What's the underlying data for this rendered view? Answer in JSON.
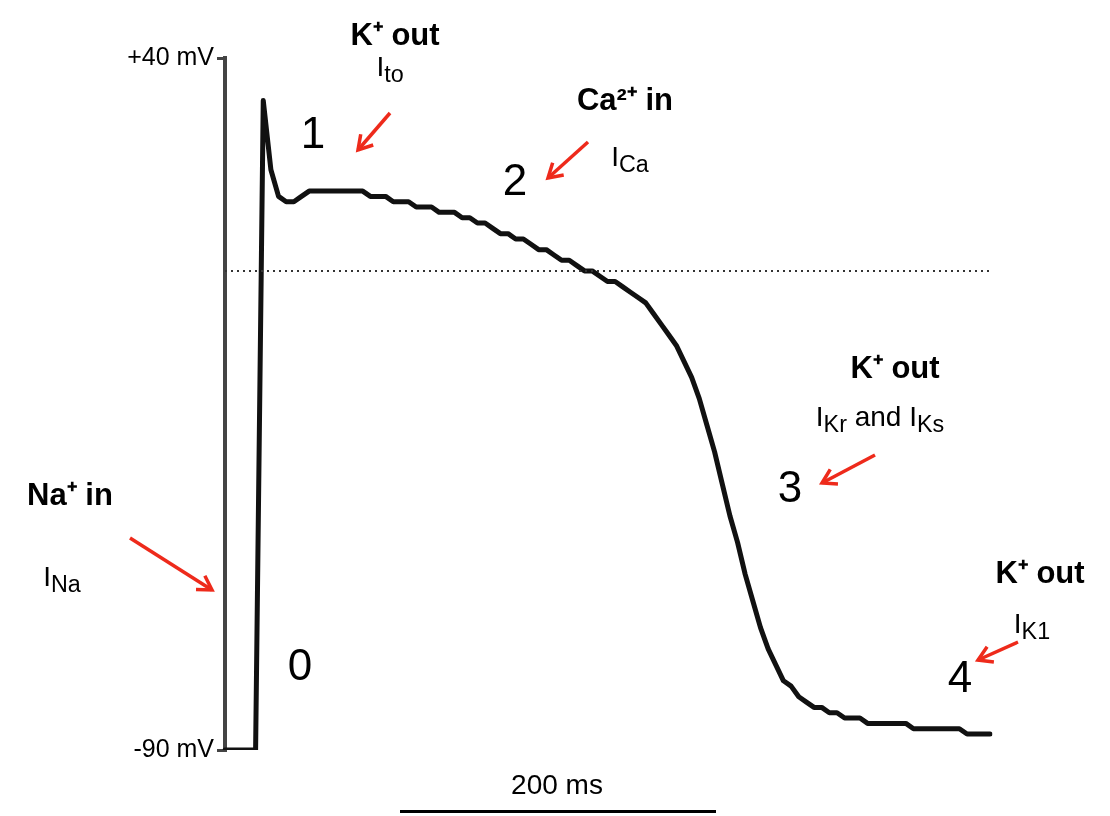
{
  "chart_data": {
    "type": "line",
    "categories": [
      null,
      null,
      null,
      null,
      null,
      null,
      null,
      null,
      null,
      null,
      null,
      null,
      null,
      null,
      null,
      null,
      null,
      null,
      null,
      null,
      null,
      null,
      null,
      null,
      null,
      null,
      null,
      null,
      null,
      null,
      null,
      null,
      null,
      null,
      null,
      null,
      null,
      null,
      null,
      null,
      null,
      null,
      null,
      null,
      null,
      null,
      null,
      null,
      null,
      null,
      null,
      null,
      null,
      null,
      null,
      null,
      null,
      null,
      null,
      null,
      null,
      null,
      null,
      null,
      null,
      null,
      null,
      null,
      null,
      null,
      null,
      null,
      null,
      null,
      null,
      null,
      null,
      null,
      null,
      null,
      null,
      null,
      null,
      null,
      null,
      null,
      null,
      null,
      null,
      null,
      null,
      null,
      null,
      null,
      null,
      null,
      null,
      null,
      null,
      null,
      null
    ],
    "series": [
      {
        "color": "#111111",
        "values": [
          -90,
          -90,
          -90,
          -90,
          -90,
          32,
          19,
          14,
          13,
          13,
          14,
          15,
          15,
          15,
          15,
          15,
          15,
          15,
          15,
          14,
          14,
          14,
          13,
          13,
          13,
          12,
          12,
          12,
          11,
          11,
          11,
          10,
          10,
          9,
          9,
          8,
          7,
          7,
          6,
          6,
          5,
          4,
          4,
          3,
          2,
          2,
          1,
          0,
          0,
          -1,
          -2,
          -2,
          -3,
          -4,
          -5,
          -6,
          -8,
          -10,
          -12,
          -14,
          -17,
          -20,
          -24,
          -29,
          -34,
          -40,
          -46,
          -51,
          -57,
          -62,
          -67,
          -71,
          -74,
          -77,
          -78,
          -80,
          -81,
          -82,
          -82,
          -83,
          -83,
          -84,
          -84,
          -84,
          -85,
          -85,
          -85,
          -85,
          -85,
          -85,
          -86,
          -86,
          -86,
          -86,
          -86,
          -86,
          -86,
          -87,
          -87,
          -87,
          -87
        ]
      }
    ],
    "ylim": [
      -90,
      40
    ],
    "yticks": [
      {
        "value": 40,
        "label": "+40 mV"
      },
      {
        "value": -90,
        "label": "-90 mV"
      }
    ],
    "tick_labels": "y",
    "grid": false,
    "legend": false,
    "marker": "none",
    "line_style": "solid",
    "ref_lines": [
      {
        "axis": "y",
        "value": 0,
        "color": "#333333",
        "line_style": "dotted"
      }
    ],
    "annotations": [
      "0",
      "1",
      "2",
      "3",
      "4",
      "K⁺ out",
      "I$_{to}$",
      "Ca²⁺ in",
      "I$_{Ca}$",
      "K⁺ out",
      "I$_{Kr}$ and I$_{Ks}$",
      "Na⁺ in",
      "I$_{Na}$",
      "K⁺ out",
      "I$_{K1}$",
      "200 ms"
    ]
  }
}
